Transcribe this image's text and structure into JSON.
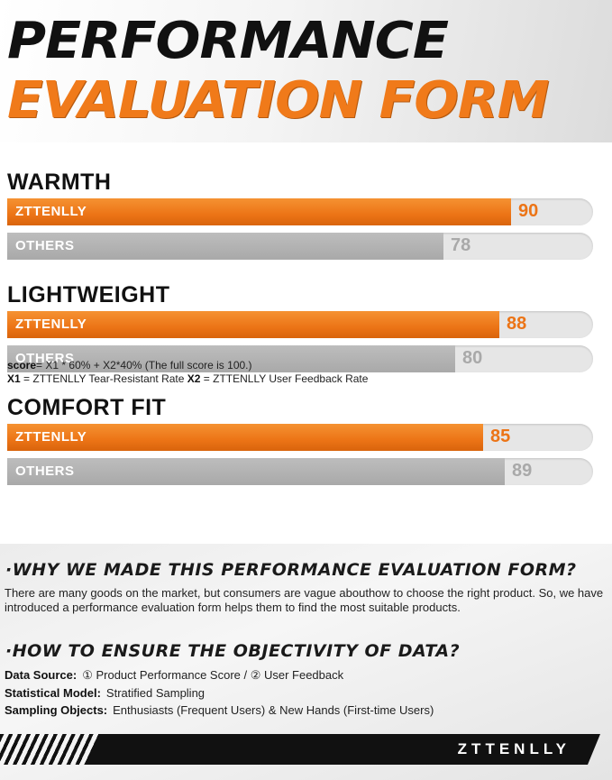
{
  "header": {
    "title_line1": "PERFORMANCE",
    "title_line2": "EVALUATION FORM"
  },
  "chart_data": {
    "type": "bar",
    "orientation": "horizontal",
    "categories": [
      "WARMTH",
      "LIGHTWEIGHT",
      "COMFORT FIT"
    ],
    "series": [
      {
        "name": "ZTTENLLY",
        "values": [
          90,
          88,
          85
        ],
        "color": "#ec7416"
      },
      {
        "name": "OTHERS",
        "values": [
          78,
          80,
          89
        ],
        "color": "#a9a9a9"
      }
    ],
    "xlim": [
      0,
      100
    ],
    "grid": false,
    "legend": "none"
  },
  "formula": {
    "line1_key": "score",
    "line1_text": "= X1 * 60% + X2*40%  (The full score is 100.)",
    "line2_k1": "X1",
    "line2_t1": " = ZTTENLLY Tear-Resistant Rate  ",
    "line2_k2": "X2",
    "line2_t2": " = ZTTENLLY User Feedback Rate"
  },
  "info": {
    "q1_title": "·WHY WE MADE THIS PERFORMANCE EVALUATION FORM?",
    "q1_text": "There are many goods on the market, but consumers are vague abouthow to choose the right product. So, we have introduced a performance evaluation form helps them to find the most suitable products.",
    "q2_title": "·HOW TO ENSURE THE OBJECTIVITY OF DATA?",
    "data_source_label": "Data Source:",
    "data_source_value": "① Product Performance Score   /   ② User Feedback",
    "model_label": "Statistical Model:",
    "model_value": "Stratified Sampling",
    "objects_label": "Sampling Objects:",
    "objects_value": "Enthusiasts (Frequent Users) & New Hands (First-time Users)"
  },
  "footer": {
    "brand": "ZTTENLLY"
  }
}
